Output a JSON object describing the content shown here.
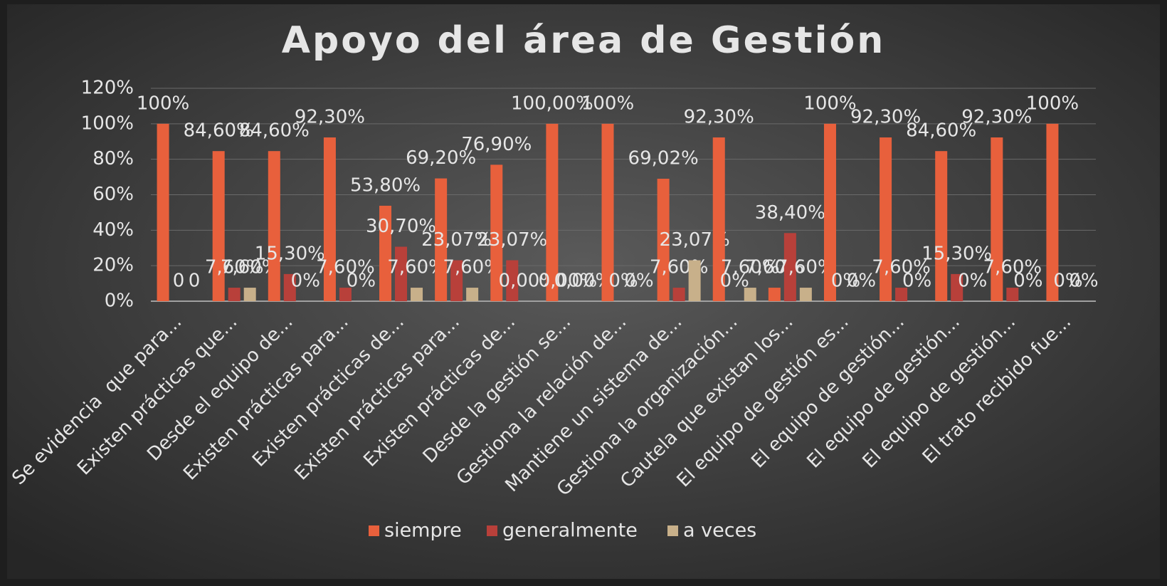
{
  "chart_data": {
    "type": "bar",
    "title": "Apoyo del área de Gestión",
    "categories": [
      "Se evidencia  que para...",
      "Existen prácticas que...",
      "Desde el equipo de...",
      "Existen prácticas para...",
      "Existen prácticas de...",
      "Existen prácticas para...",
      "Existen prácticas de...",
      "Desde la gestión se...",
      "Gestiona la relación de...",
      "Mantiene un sistema de...",
      "Gestiona la organización...",
      "Cautela que existan los...",
      "El equipo de gestión es...",
      "El equipo de gestión...",
      "El equipo de gestión...",
      "El equipo de gestión...",
      "El trato recibido fue..."
    ],
    "series": [
      {
        "name": "siempre",
        "color": "#e8603c",
        "values": [
          100,
          84.6,
          84.6,
          92.3,
          53.8,
          69.2,
          76.9,
          100,
          100,
          69.02,
          92.3,
          7.6,
          100,
          92.3,
          84.6,
          92.3,
          100
        ],
        "value_labels": [
          "100%",
          "84,60%",
          "84,60%",
          "92,30%",
          "53,80%",
          "69,20%",
          "76,90%",
          "100,00%",
          "100%",
          "69,02%",
          "92,30%",
          "7,60%",
          "100%",
          "92,30%",
          "84,60%",
          "92,30%",
          "100%"
        ]
      },
      {
        "name": "generalmente",
        "color": "#b8403a",
        "values": [
          0,
          7.6,
          15.3,
          7.6,
          30.7,
          23.07,
          23.07,
          0,
          0,
          7.6,
          0,
          38.4,
          0,
          7.6,
          15.3,
          7.6,
          0
        ],
        "value_labels": [
          "0",
          "7,60%",
          "15,30%",
          "7,60%",
          "30,70%",
          "23,07%",
          "23,07%",
          "0,00%",
          "0%",
          "7,60%",
          "0%",
          "38,40%",
          "0%",
          "7,60%",
          "15,30%",
          "7,60%",
          "0%"
        ]
      },
      {
        "name": "a veces",
        "color": "#c8b08a",
        "values": [
          0,
          7.6,
          0,
          0,
          7.6,
          7.6,
          0,
          0,
          0,
          23.07,
          7.6,
          7.6,
          0,
          0,
          0,
          0,
          0
        ],
        "value_labels": [
          "0",
          "7,60%",
          "0%",
          "0%",
          "7,60%",
          "7,60%",
          "0,00%",
          "0,00%",
          "0%",
          "23,07%",
          "7,60%",
          "7,60%",
          "0%",
          "0%",
          "0%",
          "0%",
          "0%"
        ]
      }
    ],
    "ylim": [
      0,
      120
    ],
    "yticks": [
      {
        "value": 0,
        "label": "0%"
      },
      {
        "value": 20,
        "label": "20%"
      },
      {
        "value": 40,
        "label": "40%"
      },
      {
        "value": 60,
        "label": "60%"
      },
      {
        "value": 80,
        "label": "80%"
      },
      {
        "value": 100,
        "label": "100%"
      },
      {
        "value": 120,
        "label": "120%"
      }
    ],
    "grid": true,
    "legend": "bottom"
  }
}
